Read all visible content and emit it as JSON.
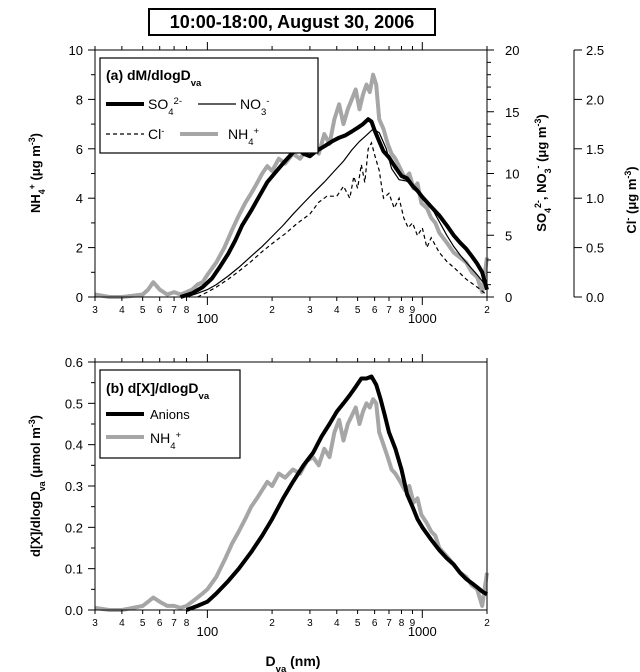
{
  "title": "10:00-18:00, August 30, 2006",
  "xlabel_main": "D",
  "xlabel_sub": "va",
  "xlabel_unit": " (nm)",
  "chart_data": [
    {
      "type": "line",
      "panel": "(a) dM/dlogD",
      "panel_sub": "va",
      "xscale": "log",
      "xlim": [
        30,
        2000
      ],
      "x_major_ticks": [
        100,
        1000
      ],
      "x_minor_labels": [
        "3",
        "4",
        "5",
        "6",
        "7",
        "8",
        "2",
        "3",
        "4",
        "5",
        "6",
        "7",
        "8",
        "9",
        "2"
      ],
      "left_axis": {
        "label": "NH4+ (μg m-3)",
        "ylim": [
          0,
          10
        ],
        "ticks": [
          "0",
          "2",
          "4",
          "6",
          "8",
          "10"
        ]
      },
      "right_axis_1": {
        "label": "SO42-, NO3- (μg m-3)",
        "ylim": [
          0,
          20
        ],
        "ticks": [
          "0",
          "5",
          "10",
          "15",
          "20"
        ]
      },
      "right_axis_2": {
        "label": "Cl- (μg m-3)",
        "ylim": [
          0,
          2.5
        ],
        "ticks": [
          "0.0",
          "0.5",
          "1.0",
          "1.5",
          "2.0",
          "2.5"
        ]
      },
      "legend": {
        "so4": "SO",
        "so4_sub": "4",
        "so4_sup": "2-",
        "no3": "NO",
        "no3_sub": "3",
        "no3_sup": "-",
        "cl": "Cl",
        "cl_sup": "-",
        "nh4": "NH",
        "nh4_sub": "4",
        "nh4_sup": "+"
      },
      "series": [
        {
          "name": "SO42-",
          "style": "thick-black",
          "axis": "right_axis_1",
          "x": [
            75,
            85,
            95,
            105,
            115,
            125,
            135,
            145,
            160,
            175,
            190,
            210,
            230,
            250,
            265,
            280,
            300,
            320,
            350,
            380,
            410,
            440,
            470,
            500,
            530,
            560,
            580,
            600,
            630,
            660,
            700,
            750,
            800,
            850,
            900,
            950,
            1000,
            1100,
            1200,
            1300,
            1400,
            1500,
            1600,
            1700,
            1800,
            1900,
            2000
          ],
          "y": [
            0,
            0.3,
            0.8,
            1.5,
            2.5,
            3.5,
            4.6,
            5.8,
            7.0,
            8.2,
            9.3,
            10.2,
            11.0,
            11.7,
            12.0,
            11.6,
            11.4,
            11.8,
            12.2,
            12.6,
            12.9,
            13.1,
            13.4,
            13.7,
            14.0,
            14.4,
            14.2,
            13.5,
            12.6,
            11.8,
            11.3,
            10.5,
            9.8,
            9.6,
            9.0,
            8.6,
            8.1,
            7.3,
            6.6,
            5.8,
            5.0,
            4.4,
            3.9,
            3.3,
            2.7,
            2.0,
            0.6
          ]
        },
        {
          "name": "NO3-",
          "style": "thin-black",
          "axis": "right_axis_1",
          "x": [
            80,
            90,
            100,
            110,
            125,
            140,
            160,
            180,
            200,
            225,
            250,
            280,
            310,
            350,
            390,
            430,
            470,
            510,
            550,
            590,
            630,
            680,
            720,
            780,
            840,
            900,
            950,
            1000,
            1100,
            1200,
            1300,
            1400,
            1500,
            1600,
            1800,
            2000
          ],
          "y": [
            0,
            0.3,
            0.6,
            1.0,
            1.7,
            2.4,
            3.3,
            4.1,
            4.9,
            5.8,
            6.7,
            7.6,
            8.4,
            9.3,
            10.2,
            11.0,
            11.9,
            12.6,
            13.1,
            13.6,
            13.3,
            12.0,
            10.4,
            9.5,
            9.4,
            9.1,
            8.5,
            8.1,
            7.3,
            6.1,
            5.0,
            4.1,
            3.4,
            2.8,
            1.8,
            0.8
          ]
        },
        {
          "name": "Cl-",
          "style": "dashed-black",
          "axis": "right_axis_2",
          "x": [
            90,
            100,
            110,
            125,
            140,
            160,
            180,
            200,
            230,
            260,
            300,
            330,
            360,
            400,
            430,
            460,
            480,
            500,
            520,
            540,
            560,
            580,
            600,
            630,
            660,
            700,
            740,
            780,
            820,
            860,
            900,
            950,
            1000,
            1050,
            1100,
            1200,
            1300,
            1400,
            1500,
            1600,
            1700,
            1800,
            1900,
            2000
          ],
          "y": [
            0,
            0.05,
            0.1,
            0.18,
            0.26,
            0.36,
            0.46,
            0.54,
            0.64,
            0.74,
            0.84,
            0.96,
            1.02,
            1.02,
            1.12,
            1.0,
            1.22,
            1.1,
            1.34,
            1.16,
            1.5,
            1.56,
            1.44,
            1.28,
            1.0,
            1.05,
            0.9,
            1.0,
            0.8,
            0.7,
            0.75,
            0.62,
            0.7,
            0.5,
            0.6,
            0.45,
            0.36,
            0.3,
            0.24,
            0.18,
            0.14,
            0.1,
            0.06,
            0.02
          ]
        },
        {
          "name": "NH4+",
          "style": "thick-gray",
          "axis": "left_axis",
          "x": [
            30,
            35,
            40,
            45,
            50,
            53,
            56,
            60,
            65,
            70,
            75,
            80,
            85,
            90,
            95,
            100,
            110,
            120,
            130,
            140,
            150,
            160,
            170,
            180,
            190,
            200,
            215,
            230,
            250,
            270,
            290,
            310,
            330,
            350,
            370,
            390,
            410,
            430,
            450,
            470,
            490,
            510,
            530,
            550,
            570,
            590,
            610,
            630,
            660,
            690,
            720,
            750,
            790,
            830,
            870,
            910,
            950,
            990,
            1050,
            1100,
            1150,
            1200,
            1300,
            1400,
            1500,
            1600,
            1700,
            1800,
            1900,
            2000
          ],
          "y": [
            0.1,
            0,
            0,
            0.05,
            0.1,
            0.3,
            0.6,
            0.3,
            0.1,
            0.2,
            0.1,
            0.2,
            0.3,
            0.5,
            0.6,
            0.9,
            1.4,
            2.0,
            2.7,
            3.3,
            3.8,
            4.2,
            4.6,
            5.0,
            5.3,
            5.1,
            5.6,
            5.4,
            5.8,
            5.6,
            6.0,
            6.2,
            5.8,
            6.6,
            6.2,
            7.2,
            7.8,
            7.0,
            7.6,
            8.0,
            8.4,
            7.6,
            8.2,
            8.6,
            8.3,
            9.0,
            8.6,
            7.2,
            6.8,
            6.2,
            5.8,
            5.6,
            5.2,
            4.8,
            5.0,
            4.4,
            4.6,
            3.8,
            3.6,
            3.2,
            3.0,
            2.6,
            2.2,
            1.8,
            1.6,
            1.4,
            1.0,
            0.8,
            0.2,
            1.6
          ]
        }
      ]
    },
    {
      "type": "line",
      "panel": "(b) d[X]/dlogD",
      "panel_sub": "va",
      "xscale": "log",
      "xlim": [
        30,
        2000
      ],
      "x_major_ticks": [
        100,
        1000
      ],
      "x_minor_labels": [
        "3",
        "4",
        "5",
        "6",
        "7",
        "8",
        "2",
        "3",
        "4",
        "5",
        "6",
        "7",
        "8",
        "9",
        "2"
      ],
      "left_axis": {
        "label": "d[X]/dlogDva (μmol m-3)",
        "ylim": [
          0,
          0.6
        ],
        "ticks": [
          "0.0",
          "0.1",
          "0.2",
          "0.3",
          "0.4",
          "0.5",
          "0.6"
        ]
      },
      "legend": {
        "anions": "Anions",
        "nh4": "NH",
        "nh4_sub": "4",
        "nh4_sup": "+"
      },
      "series": [
        {
          "name": "Anions",
          "style": "thick-black",
          "x": [
            80,
            90,
            100,
            110,
            125,
            140,
            160,
            180,
            200,
            225,
            250,
            280,
            310,
            340,
            370,
            400,
            430,
            460,
            490,
            520,
            550,
            580,
            610,
            640,
            670,
            700,
            750,
            800,
            850,
            900,
            950,
            1000,
            1100,
            1200,
            1300,
            1400,
            1500,
            1600,
            1700,
            1800,
            1900,
            2000
          ],
          "y": [
            0,
            0.01,
            0.02,
            0.04,
            0.07,
            0.1,
            0.14,
            0.18,
            0.22,
            0.27,
            0.31,
            0.35,
            0.38,
            0.42,
            0.45,
            0.48,
            0.5,
            0.52,
            0.54,
            0.56,
            0.56,
            0.565,
            0.545,
            0.51,
            0.47,
            0.43,
            0.39,
            0.34,
            0.28,
            0.25,
            0.22,
            0.2,
            0.17,
            0.145,
            0.125,
            0.11,
            0.09,
            0.075,
            0.065,
            0.055,
            0.045,
            0.038
          ]
        },
        {
          "name": "NH4+",
          "style": "thick-gray",
          "x": [
            30,
            35,
            40,
            45,
            50,
            53,
            56,
            60,
            65,
            70,
            75,
            80,
            85,
            90,
            95,
            100,
            110,
            120,
            130,
            140,
            150,
            160,
            170,
            180,
            190,
            200,
            215,
            230,
            250,
            270,
            290,
            310,
            330,
            350,
            370,
            390,
            410,
            430,
            450,
            470,
            490,
            510,
            530,
            550,
            570,
            590,
            610,
            630,
            660,
            690,
            720,
            750,
            790,
            830,
            870,
            910,
            950,
            990,
            1050,
            1100,
            1150,
            1200,
            1300,
            1400,
            1500,
            1600,
            1700,
            1800,
            1900,
            2000
          ],
          "y": [
            0.005,
            0,
            0,
            0.005,
            0.01,
            0.02,
            0.03,
            0.02,
            0.01,
            0.01,
            0.005,
            0.01,
            0.02,
            0.03,
            0.04,
            0.05,
            0.08,
            0.12,
            0.16,
            0.19,
            0.22,
            0.25,
            0.27,
            0.29,
            0.31,
            0.3,
            0.33,
            0.32,
            0.34,
            0.33,
            0.36,
            0.37,
            0.35,
            0.39,
            0.37,
            0.43,
            0.46,
            0.41,
            0.45,
            0.47,
            0.49,
            0.45,
            0.48,
            0.5,
            0.49,
            0.51,
            0.5,
            0.43,
            0.4,
            0.37,
            0.34,
            0.33,
            0.31,
            0.29,
            0.3,
            0.26,
            0.27,
            0.23,
            0.21,
            0.19,
            0.18,
            0.15,
            0.13,
            0.11,
            0.09,
            0.08,
            0.06,
            0.05,
            0.01,
            0.09
          ]
        }
      ]
    }
  ]
}
